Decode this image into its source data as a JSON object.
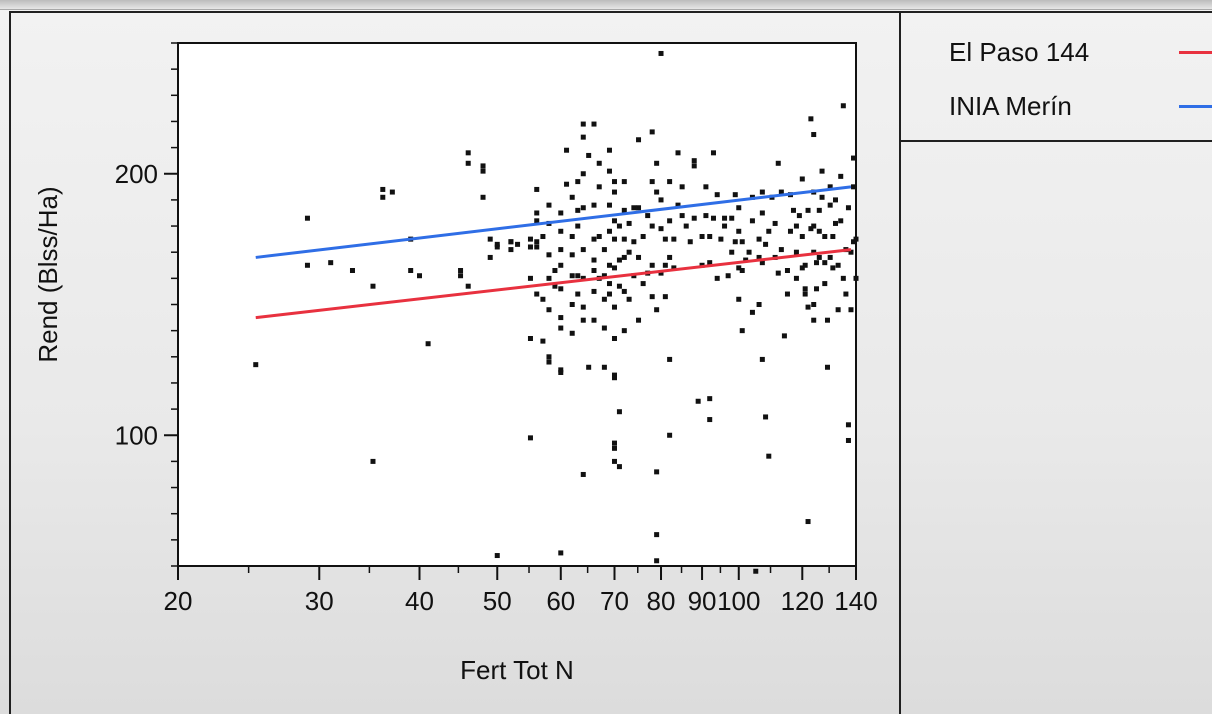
{
  "chart_data": {
    "type": "scatter",
    "xlabel": "Fert Tot N",
    "ylabel": "Rend (Blss/Ha)",
    "x_scale": "log",
    "xlim": [
      20,
      140
    ],
    "ylim": [
      50,
      250
    ],
    "x_ticks": [
      20,
      30,
      40,
      50,
      60,
      70,
      80,
      90,
      100,
      120,
      140
    ],
    "y_ticks": [
      100,
      200
    ],
    "legend_position": "right",
    "series": [
      {
        "name": "El Paso 144",
        "type": "line",
        "color": "#e8313f",
        "x": [
          25,
          138
        ],
        "y": [
          145,
          171
        ]
      },
      {
        "name": "INIA Merín",
        "type": "line",
        "color": "#2f6ee6",
        "x": [
          25,
          138
        ],
        "y": [
          168,
          195
        ]
      },
      {
        "type": "scatter",
        "color": "#111111",
        "points": [
          [
            25,
            127
          ],
          [
            29,
            183
          ],
          [
            29,
            165
          ],
          [
            31,
            166
          ],
          [
            33,
            163
          ],
          [
            35,
            157
          ],
          [
            35,
            90
          ],
          [
            36,
            191
          ],
          [
            36,
            194
          ],
          [
            37,
            193
          ],
          [
            39,
            175
          ],
          [
            39,
            163
          ],
          [
            40,
            161
          ],
          [
            41,
            135
          ],
          [
            45,
            163
          ],
          [
            45,
            161
          ],
          [
            46,
            208
          ],
          [
            46,
            204
          ],
          [
            46,
            157
          ],
          [
            48,
            201
          ],
          [
            48,
            203
          ],
          [
            48,
            191
          ],
          [
            49,
            175
          ],
          [
            49,
            168
          ],
          [
            50,
            54
          ],
          [
            50,
            173
          ],
          [
            50,
            172
          ],
          [
            52,
            174
          ],
          [
            52,
            174
          ],
          [
            52,
            171
          ],
          [
            53,
            173
          ],
          [
            55,
            137
          ],
          [
            55,
            99
          ],
          [
            55,
            172
          ],
          [
            55,
            175
          ],
          [
            55,
            160
          ],
          [
            56,
            154
          ],
          [
            56,
            194
          ],
          [
            56,
            185
          ],
          [
            56,
            182
          ],
          [
            56,
            174
          ],
          [
            56,
            172
          ],
          [
            57,
            136
          ],
          [
            57,
            152
          ],
          [
            57,
            176
          ],
          [
            58,
            130
          ],
          [
            58,
            128
          ],
          [
            58,
            160
          ],
          [
            58,
            169
          ],
          [
            58,
            148
          ],
          [
            58,
            181
          ],
          [
            58,
            188
          ],
          [
            59,
            163
          ],
          [
            59,
            157
          ],
          [
            60,
            125
          ],
          [
            60,
            124
          ],
          [
            60,
            55
          ],
          [
            60,
            145
          ],
          [
            60,
            141
          ],
          [
            60,
            156
          ],
          [
            60,
            165
          ],
          [
            60,
            171
          ],
          [
            60,
            185
          ],
          [
            60,
            178
          ],
          [
            61,
            209
          ],
          [
            61,
            196
          ],
          [
            62,
            191
          ],
          [
            62,
            176
          ],
          [
            62,
            169
          ],
          [
            62,
            161
          ],
          [
            62,
            150
          ],
          [
            62,
            139
          ],
          [
            63,
            161
          ],
          [
            63,
            154
          ],
          [
            63,
            180
          ],
          [
            63,
            186
          ],
          [
            63,
            197
          ],
          [
            64,
            219
          ],
          [
            64,
            214
          ],
          [
            64,
            200
          ],
          [
            64,
            187
          ],
          [
            64,
            171
          ],
          [
            64,
            160
          ],
          [
            64,
            149
          ],
          [
            64,
            144
          ],
          [
            64,
            85
          ],
          [
            65,
            126
          ],
          [
            65,
            207
          ],
          [
            66,
            219
          ],
          [
            66,
            188
          ],
          [
            66,
            175
          ],
          [
            66,
            167
          ],
          [
            66,
            163
          ],
          [
            66,
            155
          ],
          [
            66,
            144
          ],
          [
            67,
            160
          ],
          [
            67,
            176
          ],
          [
            67,
            195
          ],
          [
            67,
            204
          ],
          [
            68,
            171
          ],
          [
            68,
            161
          ],
          [
            68,
            152
          ],
          [
            68,
            141
          ],
          [
            68,
            126
          ],
          [
            69,
            154
          ],
          [
            69,
            209
          ],
          [
            69,
            201
          ],
          [
            69,
            188
          ],
          [
            69,
            178
          ],
          [
            69,
            165
          ],
          [
            69,
            158
          ],
          [
            70,
            123
          ],
          [
            70,
            122
          ],
          [
            70,
            97
          ],
          [
            70,
            95
          ],
          [
            70,
            90
          ],
          [
            70,
            137
          ],
          [
            70,
            149
          ],
          [
            70,
            164
          ],
          [
            70,
            175
          ],
          [
            70,
            197
          ],
          [
            70,
            193
          ],
          [
            70,
            182
          ],
          [
            71,
            109
          ],
          [
            71,
            88
          ],
          [
            71,
            157
          ],
          [
            71,
            167
          ],
          [
            71,
            180
          ],
          [
            72,
            197
          ],
          [
            72,
            186
          ],
          [
            72,
            175
          ],
          [
            72,
            168
          ],
          [
            72,
            155
          ],
          [
            72,
            140
          ],
          [
            73,
            152
          ],
          [
            73,
            170
          ],
          [
            73,
            181
          ],
          [
            74,
            161
          ],
          [
            74,
            174
          ],
          [
            74,
            187
          ],
          [
            75,
            144
          ],
          [
            75,
            213
          ],
          [
            75,
            187
          ],
          [
            75,
            168
          ],
          [
            76,
            158
          ],
          [
            76,
            176
          ],
          [
            77,
            184
          ],
          [
            77,
            162
          ],
          [
            78,
            153
          ],
          [
            78,
            216
          ],
          [
            78,
            197
          ],
          [
            78,
            180
          ],
          [
            78,
            165
          ],
          [
            79,
            86
          ],
          [
            79,
            62
          ],
          [
            79,
            52
          ],
          [
            79,
            148
          ],
          [
            79,
            193
          ],
          [
            79,
            204
          ],
          [
            80,
            246
          ],
          [
            80,
            162
          ],
          [
            80,
            179
          ],
          [
            80,
            190
          ],
          [
            81,
            153
          ],
          [
            81,
            165
          ],
          [
            81,
            175
          ],
          [
            82,
            129
          ],
          [
            82,
            100
          ],
          [
            82,
            197
          ],
          [
            82,
            182
          ],
          [
            82,
            168
          ],
          [
            83,
            164
          ],
          [
            83,
            175
          ],
          [
            84,
            188
          ],
          [
            84,
            208
          ],
          [
            85,
            184
          ],
          [
            85,
            195
          ],
          [
            86,
            180
          ],
          [
            87,
            174
          ],
          [
            88,
            183
          ],
          [
            88,
            203
          ],
          [
            88,
            205
          ],
          [
            89,
            113
          ],
          [
            90,
            176
          ],
          [
            90,
            165
          ],
          [
            91,
            184
          ],
          [
            91,
            195
          ],
          [
            92,
            114
          ],
          [
            92,
            106
          ],
          [
            92,
            176
          ],
          [
            92,
            166
          ],
          [
            93,
            183
          ],
          [
            93,
            208
          ],
          [
            94,
            160
          ],
          [
            94,
            192
          ],
          [
            95,
            175
          ],
          [
            96,
            183
          ],
          [
            96,
            180
          ],
          [
            97,
            161
          ],
          [
            98,
            183
          ],
          [
            98,
            170
          ],
          [
            99,
            174
          ],
          [
            99,
            192
          ],
          [
            100,
            152
          ],
          [
            100,
            164
          ],
          [
            100,
            178
          ],
          [
            100,
            187
          ],
          [
            101,
            140
          ],
          [
            101,
            174
          ],
          [
            101,
            163
          ],
          [
            102,
            167
          ],
          [
            103,
            170
          ],
          [
            104,
            147
          ],
          [
            104,
            182
          ],
          [
            104,
            191
          ],
          [
            105,
            48
          ],
          [
            106,
            150
          ],
          [
            106,
            168
          ],
          [
            106,
            175
          ],
          [
            107,
            129
          ],
          [
            107,
            166
          ],
          [
            107,
            185
          ],
          [
            107,
            193
          ],
          [
            108,
            107
          ],
          [
            108,
            173
          ],
          [
            109,
            92
          ],
          [
            109,
            178
          ],
          [
            110,
            191
          ],
          [
            111,
            168
          ],
          [
            111,
            181
          ],
          [
            112,
            204
          ],
          [
            112,
            162
          ],
          [
            113,
            193
          ],
          [
            113,
            171
          ],
          [
            114,
            138
          ],
          [
            115,
            163
          ],
          [
            115,
            154
          ],
          [
            116,
            178
          ],
          [
            116,
            192
          ],
          [
            117,
            186
          ],
          [
            118,
            160
          ],
          [
            118,
            170
          ],
          [
            118,
            180
          ],
          [
            119,
            184
          ],
          [
            120,
            164
          ],
          [
            120,
            176
          ],
          [
            120,
            198
          ],
          [
            121,
            165
          ],
          [
            121,
            154
          ],
          [
            121,
            156
          ],
          [
            122,
            149
          ],
          [
            122,
            67
          ],
          [
            122,
            186
          ],
          [
            123,
            179
          ],
          [
            123,
            221
          ],
          [
            124,
            215
          ],
          [
            124,
            193
          ],
          [
            124,
            180
          ],
          [
            124,
            170
          ],
          [
            124,
            150
          ],
          [
            124,
            144
          ],
          [
            125,
            156
          ],
          [
            125,
            166
          ],
          [
            126,
            168
          ],
          [
            126,
            178
          ],
          [
            126,
            186
          ],
          [
            127,
            191
          ],
          [
            127,
            201
          ],
          [
            128,
            176
          ],
          [
            128,
            166
          ],
          [
            128,
            158
          ],
          [
            129,
            144
          ],
          [
            129,
            126
          ],
          [
            130,
            195
          ],
          [
            130,
            168
          ],
          [
            130,
            188
          ],
          [
            131,
            164
          ],
          [
            131,
            176
          ],
          [
            132,
            181
          ],
          [
            132,
            190
          ],
          [
            133,
            148
          ],
          [
            133,
            165
          ],
          [
            134,
            199
          ],
          [
            134,
            182
          ],
          [
            135,
            226
          ],
          [
            135,
            160
          ],
          [
            136,
            154
          ],
          [
            136,
            171
          ],
          [
            137,
            104
          ],
          [
            137,
            98
          ],
          [
            137,
            187
          ],
          [
            138,
            170
          ],
          [
            138,
            148
          ],
          [
            139,
            195
          ],
          [
            139,
            206
          ],
          [
            139,
            174
          ],
          [
            140,
            175
          ],
          [
            140,
            160
          ]
        ]
      }
    ]
  }
}
